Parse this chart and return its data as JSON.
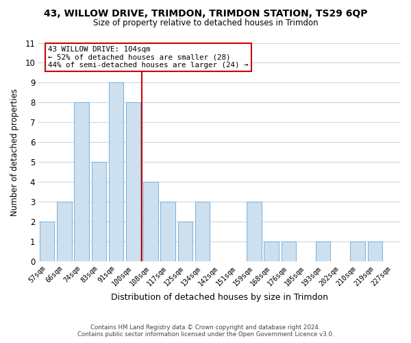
{
  "title": "43, WILLOW DRIVE, TRIMDON, TRIMDON STATION, TS29 6QP",
  "subtitle": "Size of property relative to detached houses in Trimdon",
  "xlabel": "Distribution of detached houses by size in Trimdon",
  "ylabel": "Number of detached properties",
  "footer_line1": "Contains HM Land Registry data © Crown copyright and database right 2024.",
  "footer_line2": "Contains public sector information licensed under the Open Government Licence v3.0.",
  "bar_labels": [
    "57sqm",
    "66sqm",
    "74sqm",
    "83sqm",
    "91sqm",
    "100sqm",
    "108sqm",
    "117sqm",
    "125sqm",
    "134sqm",
    "142sqm",
    "151sqm",
    "159sqm",
    "168sqm",
    "176sqm",
    "185sqm",
    "193sqm",
    "202sqm",
    "210sqm",
    "219sqm",
    "227sqm"
  ],
  "bar_values": [
    2,
    3,
    8,
    5,
    9,
    8,
    4,
    3,
    2,
    3,
    0,
    0,
    3,
    1,
    1,
    0,
    1,
    0,
    1,
    1,
    0
  ],
  "bar_color": "#cce0f0",
  "bar_edge_color": "#7ab0d8",
  "vline_color": "#cc0000",
  "annotation_title": "43 WILLOW DRIVE: 104sqm",
  "annotation_line1": "← 52% of detached houses are smaller (28)",
  "annotation_line2": "44% of semi-detached houses are larger (24) →",
  "annotation_box_color": "#ffffff",
  "annotation_box_edge": "#cc0000",
  "ylim": [
    0,
    11
  ],
  "yticks": [
    0,
    1,
    2,
    3,
    4,
    5,
    6,
    7,
    8,
    9,
    10,
    11
  ],
  "grid_color": "#c8d8e8",
  "background_color": "#ffffff",
  "plot_bg_color": "#ffffff"
}
